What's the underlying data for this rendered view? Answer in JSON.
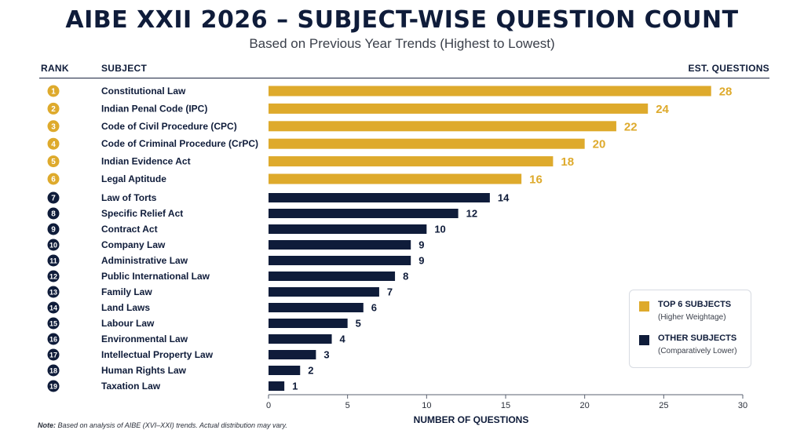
{
  "header": {
    "title": "AIBE XXII 2026 – SUBJECT-WISE QUESTION COUNT",
    "subtitle": "Based on Previous Year Trends (Highest to Lowest)",
    "col_rank": "RANK",
    "col_subject": "SUBJECT",
    "col_questions": "EST. QUESTIONS"
  },
  "colors": {
    "top": "#deaa2c",
    "other": "#0f1c3a"
  },
  "chart_data": {
    "type": "bar",
    "orientation": "horizontal",
    "title": "AIBE XXII 2026 – SUBJECT-WISE QUESTION COUNT",
    "subtitle": "Based on Previous Year Trends (Highest to Lowest)",
    "xlabel": "NUMBER OF QUESTIONS",
    "ylabel": "SUBJECT",
    "xlim": [
      0,
      30
    ],
    "xticks": [
      0,
      5,
      10,
      15,
      20,
      25,
      30
    ],
    "grid": false,
    "legend_position": "bottom-right",
    "ranks": [
      1,
      2,
      3,
      4,
      5,
      6,
      7,
      8,
      9,
      10,
      11,
      12,
      13,
      14,
      15,
      16,
      17,
      18,
      19
    ],
    "categories": [
      "Constitutional Law",
      "Indian Penal Code (IPC)",
      "Code of Civil Procedure (CPC)",
      "Code of Criminal Procedure (CrPC)",
      "Indian Evidence Act",
      "Legal Aptitude",
      "Law of Torts",
      "Specific Relief Act",
      "Contract Act",
      "Company Law",
      "Administrative Law",
      "Public International Law",
      "Family Law",
      "Land Laws",
      "Labour Law",
      "Environmental Law",
      "Intellectual Property Law",
      "Human Rights Law",
      "Taxation Law"
    ],
    "values": [
      28,
      24,
      22,
      20,
      18,
      16,
      14,
      12,
      10,
      9,
      9,
      8,
      7,
      6,
      5,
      4,
      3,
      2,
      1
    ],
    "groups": [
      "top",
      "top",
      "top",
      "top",
      "top",
      "top",
      "other",
      "other",
      "other",
      "other",
      "other",
      "other",
      "other",
      "other",
      "other",
      "other",
      "other",
      "other",
      "other"
    ]
  },
  "legend": {
    "top_title": "TOP 6 SUBJECTS",
    "top_sub": "(Higher Weightage)",
    "other_title": "OTHER SUBJECTS",
    "other_sub": "(Comparatively Lower)"
  },
  "note": {
    "label": "Note:",
    "text": "Based on analysis of AIBE (XVI–XXI) trends. Actual distribution may vary."
  }
}
